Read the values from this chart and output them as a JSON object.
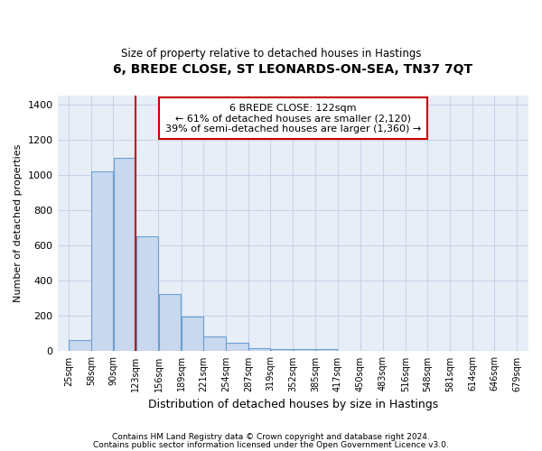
{
  "title": "6, BREDE CLOSE, ST LEONARDS-ON-SEA, TN37 7QT",
  "subtitle": "Size of property relative to detached houses in Hastings",
  "xlabel": "Distribution of detached houses by size in Hastings",
  "ylabel": "Number of detached properties",
  "footnote1": "Contains HM Land Registry data © Crown copyright and database right 2024.",
  "footnote2": "Contains public sector information licensed under the Open Government Licence v3.0.",
  "annotation_title": "6 BREDE CLOSE: 122sqm",
  "annotation_line1": "← 61% of detached houses are smaller (2,120)",
  "annotation_line2": "39% of semi-detached houses are larger (1,360) →",
  "bins": [
    25,
    58,
    90,
    123,
    156,
    189,
    221,
    254,
    287,
    319,
    352,
    385,
    417,
    450,
    483,
    516,
    548,
    581,
    614,
    646,
    679
  ],
  "values": [
    65,
    1020,
    1095,
    650,
    325,
    195,
    85,
    50,
    20,
    12,
    10,
    10,
    0,
    0,
    0,
    0,
    0,
    0,
    0,
    0
  ],
  "bar_color": "#c8d8ee",
  "bar_edge_color": "#6a9fd0",
  "vline_color": "#cc0000",
  "vline_x": 123,
  "annotation_box_color": "#cc0000",
  "grid_color": "#c8d4e8",
  "background_color": "#e8eef8",
  "ylim": [
    0,
    1450
  ],
  "yticks": [
    0,
    200,
    400,
    600,
    800,
    1000,
    1200,
    1400
  ]
}
